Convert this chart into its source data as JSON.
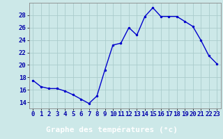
{
  "hours": [
    0,
    1,
    2,
    3,
    4,
    5,
    6,
    7,
    8,
    9,
    10,
    11,
    12,
    13,
    14,
    15,
    16,
    17,
    18,
    19,
    20,
    21,
    22,
    23
  ],
  "temps": [
    17.5,
    16.5,
    16.2,
    16.2,
    15.8,
    15.2,
    14.5,
    13.8,
    15.0,
    19.2,
    23.2,
    23.5,
    26.0,
    24.8,
    27.8,
    29.2,
    27.8,
    27.8,
    27.8,
    27.0,
    26.2,
    24.0,
    21.5,
    20.2
  ],
  "xlabel": "Graphe des températures (°c)",
  "ylim": [
    13,
    30
  ],
  "xlim": [
    -0.5,
    23.5
  ],
  "yticks": [
    14,
    16,
    18,
    20,
    22,
    24,
    26,
    28
  ],
  "xticks": [
    0,
    1,
    2,
    3,
    4,
    5,
    6,
    7,
    8,
    9,
    10,
    11,
    12,
    13,
    14,
    15,
    16,
    17,
    18,
    19,
    20,
    21,
    22,
    23
  ],
  "line_color": "#0000cc",
  "marker": ".",
  "bg_color": "#cce8e8",
  "grid_color": "#aacccc",
  "xlabel_bg": "#0000aa",
  "xlabel_color": "#ffffff",
  "xlabel_fontsize": 8,
  "tick_fontsize": 6.5,
  "marker_size": 3,
  "line_width": 1.0
}
